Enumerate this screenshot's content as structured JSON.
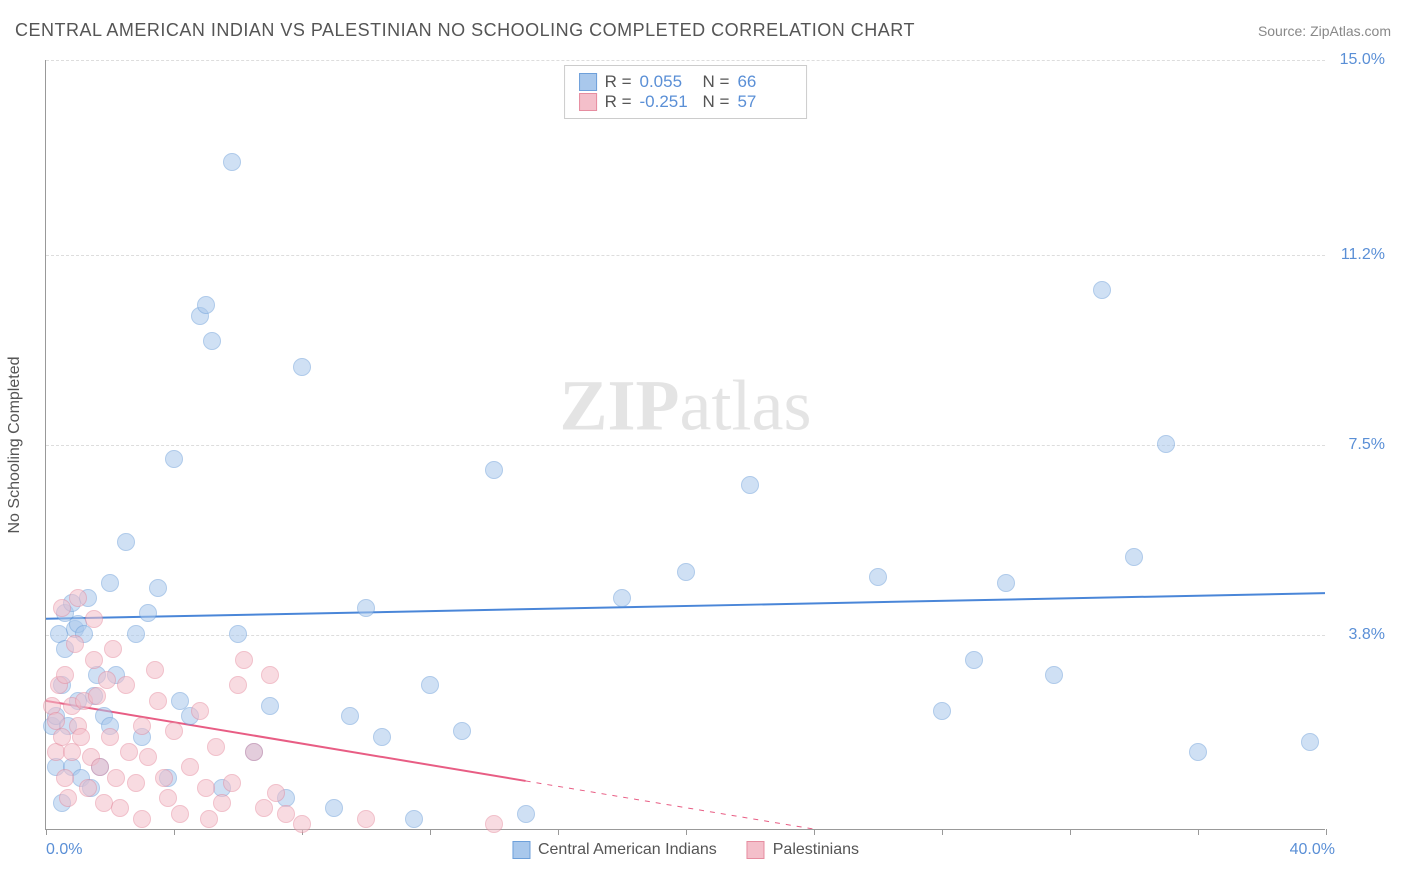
{
  "title": "CENTRAL AMERICAN INDIAN VS PALESTINIAN NO SCHOOLING COMPLETED CORRELATION CHART",
  "source_label": "Source: ZipAtlas.com",
  "watermark_zip": "ZIP",
  "watermark_atlas": "atlas",
  "y_axis_label": "No Schooling Completed",
  "chart": {
    "type": "scatter",
    "background_color": "#ffffff",
    "grid_color": "#dddddd",
    "axis_color": "#999999",
    "tick_label_color": "#5a8fd6",
    "axis_label_color": "#555555",
    "xlim": [
      0,
      40
    ],
    "ylim": [
      0,
      15
    ],
    "x_tick_positions": [
      0,
      4,
      8,
      12,
      16,
      20,
      24,
      28,
      32,
      36,
      40
    ],
    "x_tick_labels_shown": {
      "0": "0.0%",
      "40": "40.0%"
    },
    "y_gridlines": [
      {
        "value": 3.8,
        "label": "3.8%"
      },
      {
        "value": 7.5,
        "label": "7.5%"
      },
      {
        "value": 11.2,
        "label": "11.2%"
      },
      {
        "value": 15.0,
        "label": "15.0%"
      }
    ],
    "point_radius": 9,
    "point_opacity": 0.55,
    "series": [
      {
        "name": "Central American Indians",
        "color_fill": "#a9c8ec",
        "color_stroke": "#6ea0da",
        "R": "0.055",
        "N": "66",
        "trend": {
          "x1": 0,
          "y1": 4.1,
          "x2": 40,
          "y2": 4.6,
          "color": "#4a86d8",
          "width": 2,
          "dash_after_x": null
        },
        "points": [
          [
            0.2,
            2.0
          ],
          [
            0.3,
            2.2
          ],
          [
            0.3,
            1.2
          ],
          [
            0.4,
            3.8
          ],
          [
            0.5,
            2.8
          ],
          [
            0.5,
            0.5
          ],
          [
            0.6,
            3.5
          ],
          [
            0.6,
            4.2
          ],
          [
            0.7,
            2.0
          ],
          [
            0.8,
            4.4
          ],
          [
            0.8,
            1.2
          ],
          [
            0.9,
            3.9
          ],
          [
            1.0,
            4.0
          ],
          [
            1.0,
            2.5
          ],
          [
            1.1,
            1.0
          ],
          [
            1.2,
            3.8
          ],
          [
            1.3,
            4.5
          ],
          [
            1.4,
            0.8
          ],
          [
            1.5,
            2.6
          ],
          [
            1.6,
            3.0
          ],
          [
            1.7,
            1.2
          ],
          [
            1.8,
            2.2
          ],
          [
            2.0,
            4.8
          ],
          [
            2.0,
            2.0
          ],
          [
            2.2,
            3.0
          ],
          [
            2.5,
            5.6
          ],
          [
            2.8,
            3.8
          ],
          [
            3.0,
            1.8
          ],
          [
            3.2,
            4.2
          ],
          [
            3.5,
            4.7
          ],
          [
            3.8,
            1.0
          ],
          [
            4.0,
            7.2
          ],
          [
            4.2,
            2.5
          ],
          [
            4.5,
            2.2
          ],
          [
            4.8,
            10.0
          ],
          [
            5.0,
            10.2
          ],
          [
            5.2,
            9.5
          ],
          [
            5.5,
            0.8
          ],
          [
            5.8,
            13.0
          ],
          [
            6.0,
            3.8
          ],
          [
            6.5,
            1.5
          ],
          [
            7.0,
            2.4
          ],
          [
            7.5,
            0.6
          ],
          [
            8.0,
            9.0
          ],
          [
            9.0,
            0.4
          ],
          [
            9.5,
            2.2
          ],
          [
            10.0,
            4.3
          ],
          [
            10.5,
            1.8
          ],
          [
            11.5,
            0.2
          ],
          [
            12.0,
            2.8
          ],
          [
            13.0,
            1.9
          ],
          [
            14.0,
            7.0
          ],
          [
            15.0,
            0.3
          ],
          [
            18.0,
            4.5
          ],
          [
            20.0,
            5.0
          ],
          [
            22.0,
            6.7
          ],
          [
            26.0,
            4.9
          ],
          [
            28.0,
            2.3
          ],
          [
            29.0,
            3.3
          ],
          [
            30.0,
            4.8
          ],
          [
            31.5,
            3.0
          ],
          [
            33.0,
            10.5
          ],
          [
            34.0,
            5.3
          ],
          [
            35.0,
            7.5
          ],
          [
            36.0,
            1.5
          ],
          [
            39.5,
            1.7
          ]
        ]
      },
      {
        "name": "Palestinians",
        "color_fill": "#f4bfca",
        "color_stroke": "#e68da0",
        "R": "-0.251",
        "N": "57",
        "trend": {
          "x1": 0,
          "y1": 2.5,
          "x2": 24,
          "y2": 0.0,
          "color": "#e85d84",
          "width": 2,
          "dash_after_x": 15
        },
        "points": [
          [
            0.2,
            2.4
          ],
          [
            0.3,
            2.1
          ],
          [
            0.3,
            1.5
          ],
          [
            0.4,
            2.8
          ],
          [
            0.5,
            1.8
          ],
          [
            0.5,
            4.3
          ],
          [
            0.6,
            1.0
          ],
          [
            0.6,
            3.0
          ],
          [
            0.7,
            0.6
          ],
          [
            0.8,
            2.4
          ],
          [
            0.8,
            1.5
          ],
          [
            0.9,
            3.6
          ],
          [
            1.0,
            2.0
          ],
          [
            1.0,
            4.5
          ],
          [
            1.1,
            1.8
          ],
          [
            1.2,
            2.5
          ],
          [
            1.3,
            0.8
          ],
          [
            1.4,
            1.4
          ],
          [
            1.5,
            3.3
          ],
          [
            1.5,
            4.1
          ],
          [
            1.6,
            2.6
          ],
          [
            1.7,
            1.2
          ],
          [
            1.8,
            0.5
          ],
          [
            1.9,
            2.9
          ],
          [
            2.0,
            1.8
          ],
          [
            2.1,
            3.5
          ],
          [
            2.2,
            1.0
          ],
          [
            2.3,
            0.4
          ],
          [
            2.5,
            2.8
          ],
          [
            2.6,
            1.5
          ],
          [
            2.8,
            0.9
          ],
          [
            3.0,
            2.0
          ],
          [
            3.0,
            0.2
          ],
          [
            3.2,
            1.4
          ],
          [
            3.4,
            3.1
          ],
          [
            3.5,
            2.5
          ],
          [
            3.7,
            1.0
          ],
          [
            3.8,
            0.6
          ],
          [
            4.0,
            1.9
          ],
          [
            4.2,
            0.3
          ],
          [
            4.5,
            1.2
          ],
          [
            4.8,
            2.3
          ],
          [
            5.0,
            0.8
          ],
          [
            5.1,
            0.2
          ],
          [
            5.3,
            1.6
          ],
          [
            5.5,
            0.5
          ],
          [
            5.8,
            0.9
          ],
          [
            6.0,
            2.8
          ],
          [
            6.2,
            3.3
          ],
          [
            6.5,
            1.5
          ],
          [
            6.8,
            0.4
          ],
          [
            7.0,
            3.0
          ],
          [
            7.2,
            0.7
          ],
          [
            7.5,
            0.3
          ],
          [
            8.0,
            0.1
          ],
          [
            10.0,
            0.2
          ],
          [
            14.0,
            0.1
          ]
        ]
      }
    ],
    "stats_legend_labels": {
      "R": "R  =",
      "N": "N  ="
    },
    "bottom_legend_labels": [
      "Central American Indians",
      "Palestinians"
    ]
  }
}
